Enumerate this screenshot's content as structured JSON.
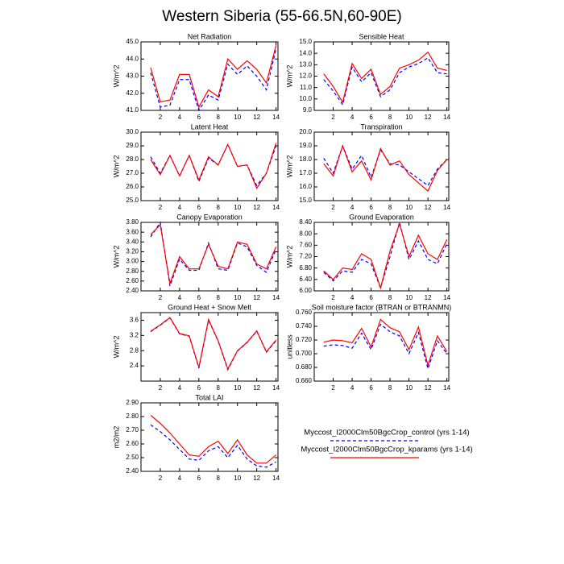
{
  "title": "Western Siberia (55-66.5N,60-90E)",
  "legend": [
    {
      "name": "Myccost_I2000Clm50BgcCrop_control (yrs 1-14)",
      "color": "#0000ff",
      "dash": true
    },
    {
      "name": "Myccost_I2000Clm50BgcCrop_kparams (yrs 1-14)",
      "color": "#ff0000",
      "dash": false
    }
  ],
  "chart_data": [
    {
      "type": "line",
      "title": "Net Radiation",
      "ylabel": "W/m^2",
      "x": [
        1,
        2,
        3,
        4,
        5,
        6,
        7,
        8,
        9,
        10,
        11,
        12,
        13,
        14
      ],
      "xlim": [
        0,
        14.2
      ],
      "xticks": [
        2,
        4,
        6,
        8,
        10,
        12,
        14
      ],
      "ylim": [
        41,
        45
      ],
      "yticks": [
        {
          "value": 41,
          "label": "41.0"
        },
        {
          "value": 42,
          "label": "42.0"
        },
        {
          "value": 43,
          "label": "43.0"
        },
        {
          "value": 44,
          "label": "44.0"
        },
        {
          "value": 45,
          "label": "45.0"
        }
      ],
      "series": [
        {
          "color": "#0000ff",
          "dash": true,
          "values": [
            43.2,
            41.2,
            41.3,
            42.8,
            42.8,
            41.0,
            41.9,
            41.6,
            43.7,
            43.1,
            43.6,
            43.0,
            42.2,
            44.6
          ]
        },
        {
          "color": "#ff0000",
          "dash": false,
          "values": [
            43.5,
            41.5,
            41.6,
            43.1,
            43.1,
            41.2,
            42.2,
            41.8,
            44.0,
            43.4,
            43.9,
            43.4,
            42.6,
            44.8
          ]
        }
      ]
    },
    {
      "type": "line",
      "title": "Sensible Heat",
      "ylabel": "W/m^2",
      "x": [
        1,
        2,
        3,
        4,
        5,
        6,
        7,
        8,
        9,
        10,
        11,
        12,
        13,
        14
      ],
      "xlim": [
        0,
        14.2
      ],
      "xticks": [
        2,
        4,
        6,
        8,
        10,
        12,
        14
      ],
      "ylim": [
        9,
        15
      ],
      "yticks": [
        {
          "value": 9,
          "label": "9.0"
        },
        {
          "value": 10,
          "label": "10.0"
        },
        {
          "value": 11,
          "label": "11.0"
        },
        {
          "value": 12,
          "label": "12.0"
        },
        {
          "value": 13,
          "label": "13.0"
        },
        {
          "value": 14,
          "label": "14.0"
        },
        {
          "value": 15,
          "label": "15.0"
        }
      ],
      "series": [
        {
          "color": "#0000ff",
          "dash": true,
          "values": [
            11.7,
            10.7,
            9.5,
            12.8,
            11.5,
            12.3,
            10.2,
            10.8,
            12.3,
            12.8,
            13.1,
            13.6,
            12.3,
            12.2
          ]
        },
        {
          "color": "#ff0000",
          "dash": false,
          "values": [
            12.2,
            11.1,
            9.7,
            13.1,
            11.8,
            12.6,
            10.4,
            11.1,
            12.7,
            13.0,
            13.4,
            14.1,
            12.7,
            12.5
          ]
        }
      ]
    },
    {
      "type": "line",
      "title": "Latent Heat",
      "ylabel": "W/m^2",
      "x": [
        1,
        2,
        3,
        4,
        5,
        6,
        7,
        8,
        9,
        10,
        11,
        12,
        13,
        14
      ],
      "xlim": [
        0,
        14.2
      ],
      "xticks": [
        2,
        4,
        6,
        8,
        10,
        12,
        14
      ],
      "ylim": [
        25,
        30
      ],
      "yticks": [
        {
          "value": 25,
          "label": "25.0"
        },
        {
          "value": 26,
          "label": "26.0"
        },
        {
          "value": 27,
          "label": "27.0"
        },
        {
          "value": 28,
          "label": "28.0"
        },
        {
          "value": 29,
          "label": "29.0"
        },
        {
          "value": 30,
          "label": "30.0"
        }
      ],
      "series": [
        {
          "color": "#0000ff",
          "dash": true,
          "values": [
            28.2,
            27.0,
            28.3,
            26.8,
            28.3,
            26.4,
            28.1,
            27.6,
            29.1,
            27.5,
            27.6,
            26.1,
            27.0,
            29.0
          ]
        },
        {
          "color": "#ff0000",
          "dash": false,
          "values": [
            28.0,
            26.9,
            28.3,
            26.8,
            28.3,
            26.5,
            28.2,
            27.6,
            29.1,
            27.5,
            27.6,
            25.9,
            27.0,
            29.2
          ]
        }
      ]
    },
    {
      "type": "line",
      "title": "Transpiration",
      "ylabel": "W/m^2",
      "x": [
        1,
        2,
        3,
        4,
        5,
        6,
        7,
        8,
        9,
        10,
        11,
        12,
        13,
        14
      ],
      "xlim": [
        0,
        14.2
      ],
      "xticks": [
        2,
        4,
        6,
        8,
        10,
        12,
        14
      ],
      "ylim": [
        15,
        20
      ],
      "yticks": [
        {
          "value": 15,
          "label": "15.0"
        },
        {
          "value": 16,
          "label": "16.0"
        },
        {
          "value": 17,
          "label": "17.0"
        },
        {
          "value": 18,
          "label": "18.0"
        },
        {
          "value": 19,
          "label": "19.0"
        },
        {
          "value": 20,
          "label": "20.0"
        }
      ],
      "series": [
        {
          "color": "#0000ff",
          "dash": true,
          "values": [
            18.1,
            17.0,
            19.0,
            17.3,
            18.3,
            16.7,
            18.7,
            17.7,
            17.6,
            17.1,
            16.6,
            16.1,
            17.3,
            18.0
          ]
        },
        {
          "color": "#ff0000",
          "dash": false,
          "values": [
            17.7,
            16.8,
            19.0,
            17.1,
            17.9,
            16.5,
            18.8,
            17.6,
            17.9,
            16.9,
            16.3,
            15.7,
            17.2,
            18.0
          ]
        }
      ]
    },
    {
      "type": "line",
      "title": "Canopy Evaporation",
      "ylabel": "W/m^2",
      "x": [
        1,
        2,
        3,
        4,
        5,
        6,
        7,
        8,
        9,
        10,
        11,
        12,
        13,
        14
      ],
      "xlim": [
        0,
        14.2
      ],
      "xticks": [
        2,
        4,
        6,
        8,
        10,
        12,
        14
      ],
      "ylim": [
        2.4,
        3.8
      ],
      "yticks": [
        {
          "value": 2.4,
          "label": "2.40"
        },
        {
          "value": 2.6,
          "label": "2.60"
        },
        {
          "value": 2.8,
          "label": "2.80"
        },
        {
          "value": 3.0,
          "label": "3.00"
        },
        {
          "value": 3.2,
          "label": "3.20"
        },
        {
          "value": 3.4,
          "label": "3.40"
        },
        {
          "value": 3.6,
          "label": "3.60"
        },
        {
          "value": 3.8,
          "label": "3.80"
        }
      ],
      "series": [
        {
          "color": "#0000ff",
          "dash": true,
          "values": [
            3.5,
            3.8,
            2.5,
            3.05,
            2.82,
            2.82,
            3.38,
            2.85,
            2.82,
            3.38,
            3.3,
            2.92,
            2.78,
            3.25
          ]
        },
        {
          "color": "#ff0000",
          "dash": false,
          "values": [
            3.55,
            3.75,
            2.55,
            3.1,
            2.85,
            2.85,
            3.35,
            2.9,
            2.85,
            3.4,
            3.35,
            2.95,
            2.85,
            3.3
          ]
        }
      ]
    },
    {
      "type": "line",
      "title": "Ground Evaporation",
      "ylabel": "W/m^2",
      "x": [
        1,
        2,
        3,
        4,
        5,
        6,
        7,
        8,
        9,
        10,
        11,
        12,
        13,
        14
      ],
      "xlim": [
        0,
        14.2
      ],
      "xticks": [
        2,
        4,
        6,
        8,
        10,
        12,
        14
      ],
      "ylim": [
        6.0,
        8.4
      ],
      "yticks": [
        {
          "value": 6.0,
          "label": "6.00"
        },
        {
          "value": 6.4,
          "label": "6.40"
        },
        {
          "value": 6.8,
          "label": "6.80"
        },
        {
          "value": 7.2,
          "label": "7.20"
        },
        {
          "value": 7.6,
          "label": "7.60"
        },
        {
          "value": 8.0,
          "label": "8.00"
        },
        {
          "value": 8.4,
          "label": "8.40"
        }
      ],
      "series": [
        {
          "color": "#0000ff",
          "dash": true,
          "values": [
            6.65,
            6.35,
            6.7,
            6.65,
            7.1,
            6.95,
            6.1,
            7.2,
            8.4,
            7.1,
            7.75,
            7.1,
            6.95,
            7.65
          ]
        },
        {
          "color": "#ff0000",
          "dash": false,
          "values": [
            6.7,
            6.4,
            6.8,
            6.75,
            7.3,
            7.1,
            6.1,
            7.4,
            8.35,
            7.2,
            7.95,
            7.3,
            7.1,
            7.8
          ]
        }
      ]
    },
    {
      "type": "line",
      "title": "Ground Heat + Snow Melt",
      "ylabel": "W/m^2",
      "x": [
        1,
        2,
        3,
        4,
        5,
        6,
        7,
        8,
        9,
        10,
        11,
        12,
        13,
        14
      ],
      "xlim": [
        0,
        14.2
      ],
      "xticks": [
        2,
        4,
        6,
        8,
        10,
        12,
        14
      ],
      "ylim": [
        2.0,
        3.8
      ],
      "yticks": [
        2.4,
        2.8,
        3.2,
        3.6
      ],
      "series": [
        {
          "color": "#0000ff",
          "dash": true,
          "values": [
            3.3,
            3.47,
            3.66,
            3.24,
            3.18,
            2.34,
            3.6,
            3.05,
            2.3,
            2.79,
            3.01,
            3.31,
            2.76,
            3.06
          ]
        },
        {
          "color": "#ff0000",
          "dash": false,
          "values": [
            3.31,
            3.48,
            3.67,
            3.25,
            3.19,
            2.36,
            3.62,
            3.06,
            2.32,
            2.8,
            3.02,
            3.32,
            2.77,
            3.08
          ]
        }
      ]
    },
    {
      "type": "line",
      "title": "Soil moisture factor (BTRAN or BTRANMN)",
      "ylabel": "unitless",
      "x": [
        1,
        2,
        3,
        4,
        5,
        6,
        7,
        8,
        9,
        10,
        11,
        12,
        13,
        14
      ],
      "xlim": [
        0,
        14.2
      ],
      "xticks": [
        2,
        4,
        6,
        8,
        10,
        12,
        14
      ],
      "ylim": [
        0.66,
        0.76
      ],
      "yticks": [
        {
          "value": 0.66,
          "label": "0.660"
        },
        {
          "value": 0.68,
          "label": "0.680"
        },
        {
          "value": 0.7,
          "label": "0.700"
        },
        {
          "value": 0.72,
          "label": "0.720"
        },
        {
          "value": 0.74,
          "label": "0.740"
        },
        {
          "value": 0.76,
          "label": "0.760"
        }
      ],
      "series": [
        {
          "color": "#0000ff",
          "dash": true,
          "values": [
            0.711,
            0.713,
            0.712,
            0.708,
            0.73,
            0.706,
            0.743,
            0.732,
            0.726,
            0.7,
            0.731,
            0.678,
            0.719,
            0.7
          ]
        },
        {
          "color": "#ff0000",
          "dash": false,
          "values": [
            0.717,
            0.72,
            0.719,
            0.716,
            0.737,
            0.71,
            0.75,
            0.738,
            0.732,
            0.706,
            0.739,
            0.683,
            0.726,
            0.703
          ]
        }
      ]
    },
    {
      "type": "line",
      "title": "Total LAI",
      "ylabel": "m2/m2",
      "x": [
        1,
        2,
        3,
        4,
        5,
        6,
        7,
        8,
        9,
        10,
        11,
        12,
        13,
        14
      ],
      "xlim": [
        0,
        14.2
      ],
      "xticks": [
        2,
        4,
        6,
        8,
        10,
        12,
        14
      ],
      "ylim": [
        2.4,
        2.9
      ],
      "yticks": [
        {
          "value": 2.4,
          "label": "2.40"
        },
        {
          "value": 2.5,
          "label": "2.50"
        },
        {
          "value": 2.6,
          "label": "2.60"
        },
        {
          "value": 2.7,
          "label": "2.70"
        },
        {
          "value": 2.8,
          "label": "2.80"
        },
        {
          "value": 2.9,
          "label": "2.90"
        }
      ],
      "series": [
        {
          "color": "#0000ff",
          "dash": true,
          "values": [
            2.74,
            2.69,
            2.63,
            2.56,
            2.49,
            2.48,
            2.55,
            2.58,
            2.5,
            2.59,
            2.49,
            2.44,
            2.43,
            2.47
          ]
        },
        {
          "color": "#ff0000",
          "dash": false,
          "values": [
            2.81,
            2.75,
            2.68,
            2.6,
            2.52,
            2.51,
            2.58,
            2.62,
            2.53,
            2.63,
            2.52,
            2.46,
            2.46,
            2.52
          ]
        }
      ]
    }
  ]
}
